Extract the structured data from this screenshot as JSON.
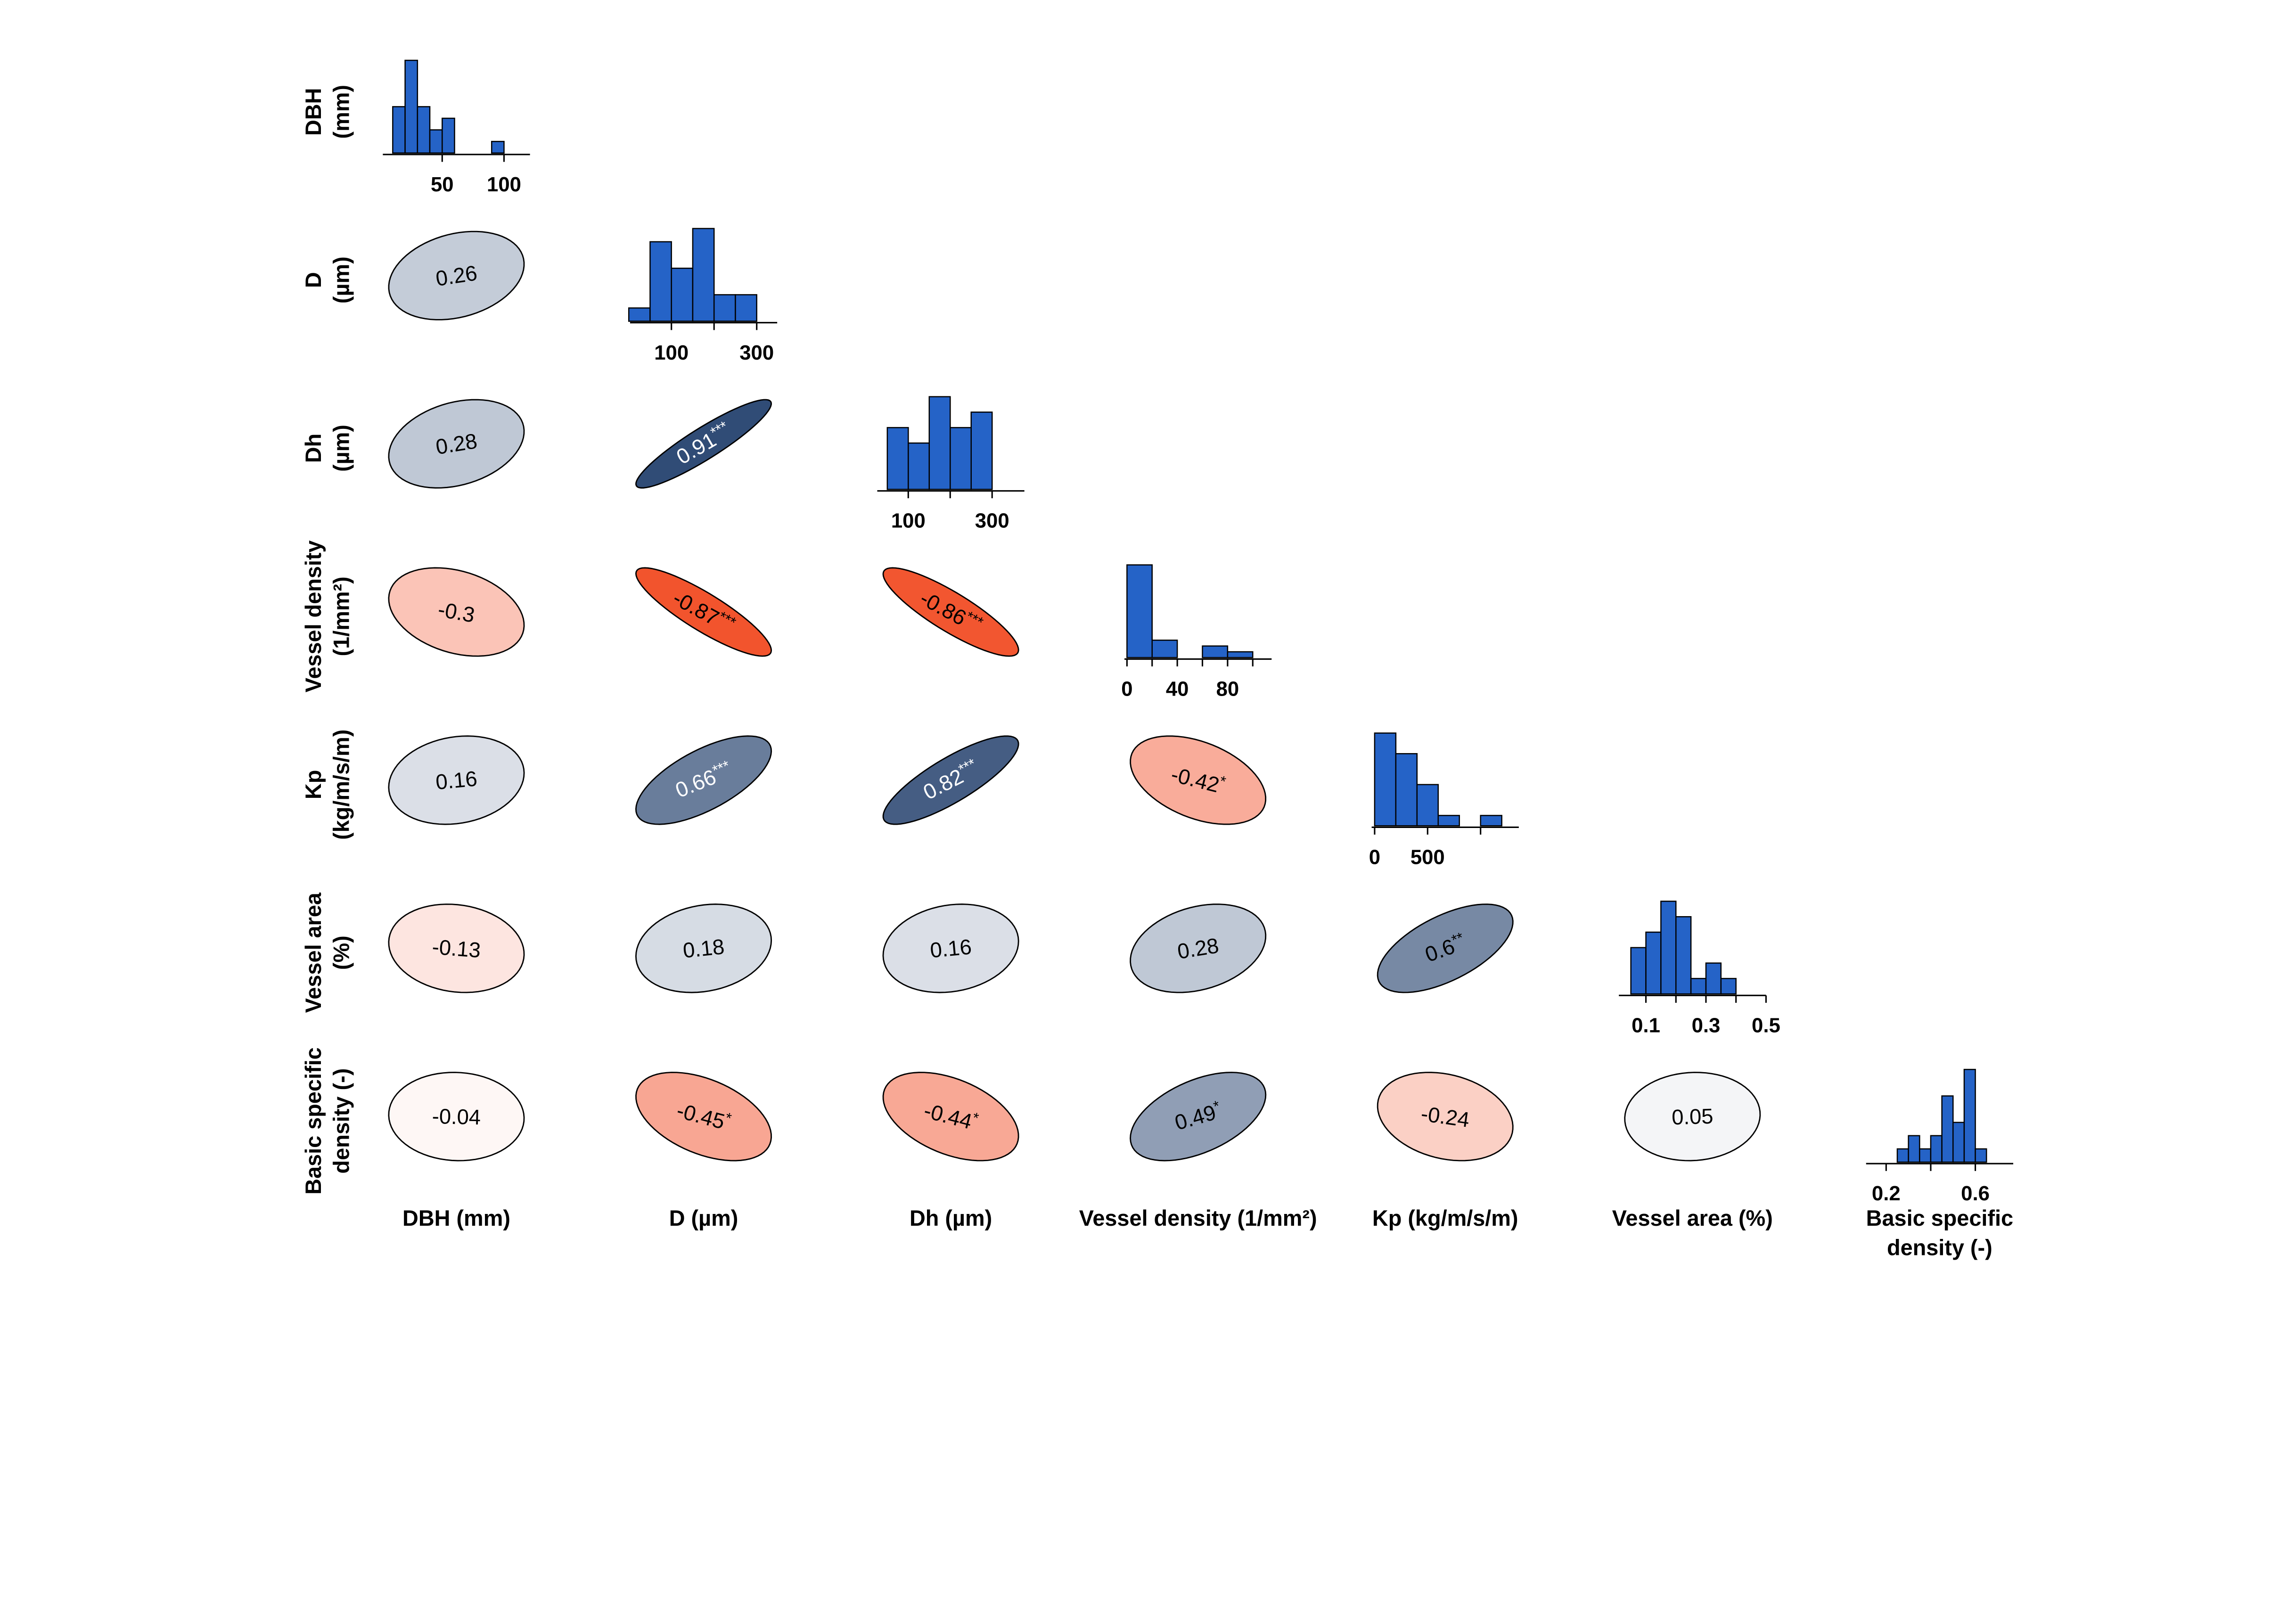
{
  "chart_data": {
    "type": "heatmap",
    "row_labels": [
      [
        "DBH",
        "(mm)"
      ],
      [
        "D",
        "(µm)"
      ],
      [
        "Dh",
        "(µm)"
      ],
      [
        "Vessel density",
        "(1/mm²)"
      ],
      [
        "Kp",
        "(kg/m/s/m)"
      ],
      [
        "Vessel area",
        "(%)"
      ],
      [
        "Basic specific",
        "density (-)"
      ]
    ],
    "column_labels": [
      [
        "DBH (mm)"
      ],
      [
        "D (µm)"
      ],
      [
        "Dh (µm)"
      ],
      [
        "Vessel density (1/mm²)"
      ],
      [
        "Kp (kg/m/s/m)"
      ],
      [
        "Vessel area (%)"
      ],
      [
        "Basic specific",
        "density (-)"
      ]
    ],
    "correlations": [
      {
        "row": 1,
        "col": 0,
        "r": 0.26
      },
      {
        "row": 2,
        "col": 0,
        "r": 0.28
      },
      {
        "row": 2,
        "col": 1,
        "r": 0.91,
        "stars": "***"
      },
      {
        "row": 3,
        "col": 0,
        "r": -0.3
      },
      {
        "row": 3,
        "col": 1,
        "r": -0.87,
        "stars": "***"
      },
      {
        "row": 3,
        "col": 2,
        "r": -0.86,
        "stars": "***"
      },
      {
        "row": 4,
        "col": 0,
        "r": 0.16
      },
      {
        "row": 4,
        "col": 1,
        "r": 0.66,
        "stars": "***"
      },
      {
        "row": 4,
        "col": 2,
        "r": 0.82,
        "stars": "***"
      },
      {
        "row": 4,
        "col": 3,
        "r": -0.42,
        "stars": "*"
      },
      {
        "row": 5,
        "col": 0,
        "r": -0.13
      },
      {
        "row": 5,
        "col": 1,
        "r": 0.18
      },
      {
        "row": 5,
        "col": 2,
        "r": 0.16
      },
      {
        "row": 5,
        "col": 3,
        "r": 0.28
      },
      {
        "row": 5,
        "col": 4,
        "r": 0.6,
        "stars": "**"
      },
      {
        "row": 6,
        "col": 0,
        "r": -0.04
      },
      {
        "row": 6,
        "col": 1,
        "r": -0.45,
        "stars": "*"
      },
      {
        "row": 6,
        "col": 2,
        "r": -0.44,
        "stars": "*"
      },
      {
        "row": 6,
        "col": 3,
        "r": 0.49,
        "stars": "*"
      },
      {
        "row": 6,
        "col": 4,
        "r": -0.24
      },
      {
        "row": 6,
        "col": 5,
        "r": 0.05
      }
    ],
    "histograms": [
      {
        "breaks": [
          10,
          20,
          30,
          40,
          50,
          60,
          70,
          80,
          90,
          100
        ],
        "counts": [
          4,
          8,
          4,
          2,
          3,
          0,
          0,
          0,
          1
        ],
        "xlim": [
          2,
          121
        ],
        "labeled_ticks": [
          {
            "value": 50,
            "label": "50"
          },
          {
            "value": 100,
            "label": "100"
          }
        ],
        "unlabeled_ticks": []
      },
      {
        "breaks": [
          0,
          50,
          100,
          150,
          200,
          250,
          300
        ],
        "counts": [
          1,
          6,
          4,
          7,
          2,
          2
        ],
        "xlim": [
          3,
          348
        ],
        "labeled_ticks": [
          {
            "value": 100,
            "label": "100"
          },
          {
            "value": 300,
            "label": "300"
          }
        ],
        "unlabeled_ticks": [
          200
        ]
      },
      {
        "breaks": [
          50,
          100,
          150,
          200,
          250,
          300
        ],
        "counts": [
          4,
          3,
          6,
          4,
          5
        ],
        "xlim": [
          26,
          377
        ],
        "labeled_ticks": [
          {
            "value": 100,
            "label": "100"
          },
          {
            "value": 300,
            "label": "300"
          }
        ],
        "unlabeled_ticks": [
          200
        ]
      },
      {
        "breaks": [
          0,
          20,
          40,
          60,
          80,
          100
        ],
        "counts": [
          16,
          3,
          0,
          2,
          1
        ],
        "xlim": [
          -2,
          115
        ],
        "labeled_ticks": [
          {
            "value": 0,
            "label": "0"
          },
          {
            "value": 40,
            "label": "40"
          },
          {
            "value": 80,
            "label": "80"
          }
        ],
        "unlabeled_ticks": [
          20,
          60,
          100
        ]
      },
      {
        "breaks": [
          0,
          200,
          400,
          600,
          800,
          1000,
          1200
        ],
        "counts": [
          9,
          7,
          4,
          1,
          0,
          1
        ],
        "xlim": [
          -28,
          1361
        ],
        "labeled_ticks": [
          {
            "value": 0,
            "label": "0"
          },
          {
            "value": 500,
            "label": "500"
          }
        ],
        "unlabeled_ticks": [
          1000
        ]
      },
      {
        "breaks": [
          0.05,
          0.1,
          0.15,
          0.2,
          0.25,
          0.3,
          0.35,
          0.4
        ],
        "counts": [
          3,
          4,
          6,
          5,
          1,
          2,
          1
        ],
        "xlim": [
          0.01,
          0.5
        ],
        "labeled_ticks": [
          {
            "value": 0.1,
            "label": "0.1"
          },
          {
            "value": 0.3,
            "label": "0.3"
          },
          {
            "value": 0.5,
            "label": "0.5"
          }
        ],
        "unlabeled_ticks": [
          0.2,
          0.4
        ]
      },
      {
        "breaks": [
          0.25,
          0.3,
          0.35,
          0.4,
          0.45,
          0.5,
          0.55,
          0.6,
          0.65
        ],
        "counts": [
          1,
          2,
          1,
          2,
          5,
          3,
          7,
          1
        ],
        "xlim": [
          0.11,
          0.77
        ],
        "labeled_ticks": [
          {
            "value": 0.2,
            "label": "0.2"
          },
          {
            "value": 0.6,
            "label": "0.6"
          }
        ],
        "unlabeled_ticks": [
          0.4
        ]
      }
    ],
    "colors": {
      "positive": "#1c3a68",
      "negative": "#f03a0e",
      "bar_fill": "#2563c7",
      "outline": "#000000",
      "label_light": "#ffffff",
      "label_dark": "#000000"
    }
  }
}
